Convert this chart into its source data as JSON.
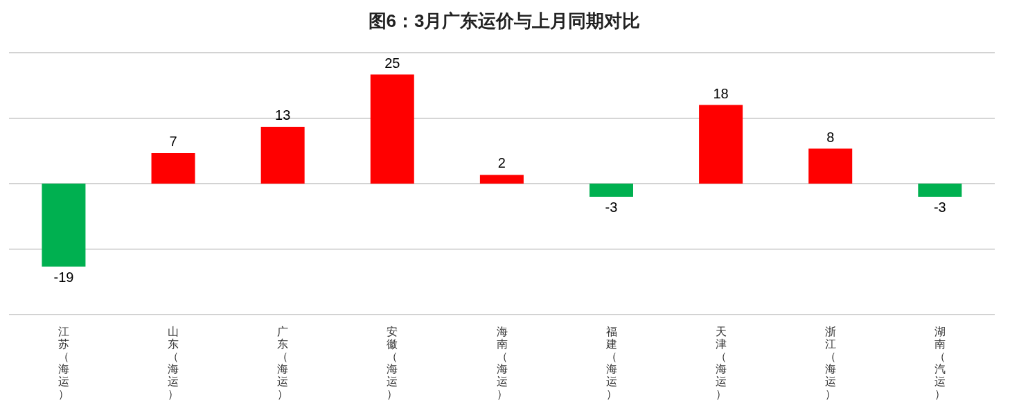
{
  "chart_data": {
    "type": "bar",
    "title": "图6：3月广东运价与上月同期对比",
    "categories": [
      "江苏（海运）",
      "山东（海运）",
      "广东（海运）",
      "安徽（海运）",
      "海南（海运）",
      "福建（海运）",
      "天津（海运）",
      "浙江（海运）",
      "湖南（汽运）"
    ],
    "values": [
      -19,
      7,
      13,
      25,
      2,
      -3,
      18,
      8,
      -3
    ],
    "colors": [
      "#00b050",
      "#ff0000",
      "#ff0000",
      "#ff0000",
      "#ff0000",
      "#00b050",
      "#ff0000",
      "#ff0000",
      "#00b050"
    ],
    "grid": "y",
    "tick_labels": "x",
    "data_labels": true
  }
}
